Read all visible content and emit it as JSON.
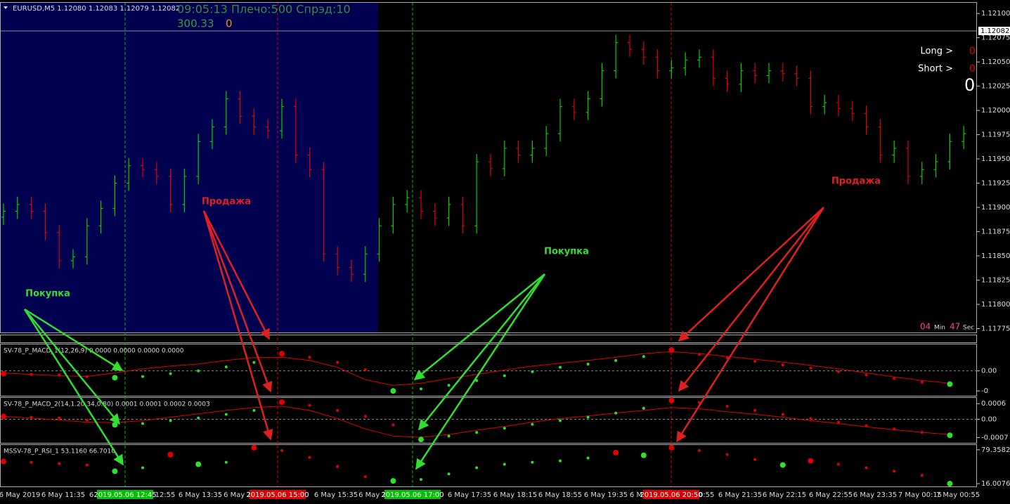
{
  "header": {
    "symbol": "EURUSD,M5  1.12080 1.12083 1.12079 1.12082",
    "status": "09:05:13 Плечо:500 Спрэд:10",
    "balance": "300.33",
    "balance_count": "0"
  },
  "panel_right": {
    "long": "Long >",
    "long_value": "0",
    "short": "Short >",
    "short_value": "0",
    "total": "0"
  },
  "timer": {
    "min": "04",
    "min_label": "Min",
    "sec": "47",
    "sec_label": "Sec"
  },
  "annotations": [
    {
      "text": "Продажа",
      "color": "#e02020"
    },
    {
      "text": "Продажа",
      "color": "#e02020"
    },
    {
      "text": "Покупка",
      "color": "#30e030"
    },
    {
      "text": "Покупка",
      "color": "#30e030"
    }
  ],
  "chart_data": [
    {
      "type": "ohlc",
      "up_color": "#00d000",
      "down_color": "#e00000",
      "session_color": "#000050",
      "price_line": 1.12082,
      "ylim": [
        1.11771,
        1.12111
      ],
      "yticks": [
        {
          "value": 1.121,
          "label": "1.12100"
        },
        {
          "value": 1.12075,
          "label": "1.12075"
        },
        {
          "value": 1.1205,
          "label": "1.12050"
        },
        {
          "value": 1.12025,
          "label": "1.12025"
        },
        {
          "value": 1.12,
          "label": "1.12000"
        },
        {
          "value": 1.11975,
          "label": "1.11975"
        },
        {
          "value": 1.1195,
          "label": "1.11950"
        },
        {
          "value": 1.11925,
          "label": "1.11925"
        },
        {
          "value": 1.119,
          "label": "1.11900"
        },
        {
          "value": 1.11875,
          "label": "1.11875"
        },
        {
          "value": 1.1185,
          "label": "1.11850"
        },
        {
          "value": 1.11825,
          "label": "1.11825"
        },
        {
          "value": 1.118,
          "label": "1.11800"
        },
        {
          "value": 1.11775,
          "label": "1.11775"
        }
      ],
      "ohlc": [
        [
          1.1189,
          1.11904,
          1.11882,
          1.11896
        ],
        [
          1.11896,
          1.11911,
          1.11888,
          1.11903
        ],
        [
          1.11903,
          1.11911,
          1.11888,
          1.11896
        ],
        [
          1.11896,
          1.11904,
          1.11866,
          1.11874
        ],
        [
          1.11874,
          1.11882,
          1.11837,
          1.11845
        ],
        [
          1.11845,
          1.11857,
          1.11837,
          1.11849
        ],
        [
          1.11849,
          1.11889,
          1.11841,
          1.11881
        ],
        [
          1.11881,
          1.11907,
          1.11873,
          1.11899
        ],
        [
          1.11899,
          1.11933,
          1.11891,
          1.11925
        ],
        [
          1.11925,
          1.11951,
          1.11917,
          1.11943
        ],
        [
          1.11943,
          1.11951,
          1.11931,
          1.11939
        ],
        [
          1.11939,
          1.11947,
          1.11924,
          1.11932
        ],
        [
          1.11932,
          1.1194,
          1.11895,
          1.11903
        ],
        [
          1.11903,
          1.1194,
          1.11895,
          1.11932
        ],
        [
          1.11932,
          1.11976,
          1.11924,
          1.11968
        ],
        [
          1.11968,
          1.11991,
          1.1196,
          1.11983
        ],
        [
          1.11983,
          1.1202,
          1.11975,
          1.12012
        ],
        [
          1.12012,
          1.1202,
          1.11986,
          1.11994
        ],
        [
          1.11994,
          1.12002,
          1.11975,
          1.11983
        ],
        [
          1.11983,
          1.11991,
          1.11971,
          1.11979
        ],
        [
          1.11979,
          1.12012,
          1.11971,
          1.12004
        ],
        [
          1.12004,
          1.12012,
          1.11946,
          1.11954
        ],
        [
          1.11954,
          1.11962,
          1.11931,
          1.11939
        ],
        [
          1.11939,
          1.11947,
          1.11844,
          1.11852
        ],
        [
          1.11852,
          1.1186,
          1.1183,
          1.11838
        ],
        [
          1.11838,
          1.11846,
          1.11823,
          1.11831
        ],
        [
          1.11831,
          1.1186,
          1.11823,
          1.11852
        ],
        [
          1.11852,
          1.11889,
          1.11844,
          1.11881
        ],
        [
          1.11881,
          1.11911,
          1.11873,
          1.11903
        ],
        [
          1.11903,
          1.11918,
          1.11895,
          1.1191
        ],
        [
          1.1191,
          1.11918,
          1.11888,
          1.11896
        ],
        [
          1.11896,
          1.11904,
          1.11881,
          1.11889
        ],
        [
          1.11889,
          1.11911,
          1.11881,
          1.11903
        ],
        [
          1.11903,
          1.11911,
          1.11873,
          1.11881
        ],
        [
          1.11881,
          1.11955,
          1.11873,
          1.11947
        ],
        [
          1.11947,
          1.11955,
          1.11932,
          1.1194
        ],
        [
          1.1194,
          1.11969,
          1.11932,
          1.11961
        ],
        [
          1.11961,
          1.11969,
          1.11946,
          1.11954
        ],
        [
          1.11954,
          1.11969,
          1.11946,
          1.11961
        ],
        [
          1.11961,
          1.11984,
          1.11953,
          1.11976
        ],
        [
          1.11976,
          1.12012,
          1.11968,
          1.12004
        ],
        [
          1.12004,
          1.12012,
          1.1199,
          1.11998
        ],
        [
          1.11998,
          1.1202,
          1.1199,
          1.12012
        ],
        [
          1.12012,
          1.12049,
          1.12004,
          1.12041
        ],
        [
          1.12041,
          1.12078,
          1.12033,
          1.1207
        ],
        [
          1.1207,
          1.12078,
          1.12055,
          1.12063
        ],
        [
          1.12063,
          1.12071,
          1.12047,
          1.12055
        ],
        [
          1.12055,
          1.12063,
          1.12033,
          1.12041
        ],
        [
          1.12041,
          1.12052,
          1.12033,
          1.12044
        ],
        [
          1.12044,
          1.1206,
          1.12036,
          1.12052
        ],
        [
          1.12052,
          1.12063,
          1.12044,
          1.12055
        ],
        [
          1.12055,
          1.12063,
          1.12025,
          1.12033
        ],
        [
          1.12033,
          1.12041,
          1.12019,
          1.12027
        ],
        [
          1.12027,
          1.12049,
          1.12019,
          1.12041
        ],
        [
          1.12041,
          1.12049,
          1.12028,
          1.12036
        ],
        [
          1.12036,
          1.12049,
          1.12028,
          1.12041
        ],
        [
          1.12041,
          1.12049,
          1.1203,
          1.12038
        ],
        [
          1.12038,
          1.12046,
          1.12025,
          1.12033
        ],
        [
          1.12033,
          1.12041,
          1.11996,
          1.12004
        ],
        [
          1.12004,
          1.12016,
          1.11996,
          1.12008
        ],
        [
          1.12008,
          1.12016,
          1.11994,
          1.12002
        ],
        [
          1.12002,
          1.1201,
          1.11989,
          1.11997
        ],
        [
          1.11997,
          1.12005,
          1.11975,
          1.11983
        ],
        [
          1.11983,
          1.11991,
          1.11946,
          1.11954
        ],
        [
          1.11954,
          1.11969,
          1.11946,
          1.11961
        ],
        [
          1.11961,
          1.11969,
          1.11924,
          1.11932
        ],
        [
          1.11932,
          1.11947,
          1.11924,
          1.11939
        ],
        [
          1.11939,
          1.11955,
          1.11931,
          1.11947
        ],
        [
          1.11947,
          1.11976,
          1.11939,
          1.11968
        ],
        [
          1.11968,
          1.11984,
          1.1196,
          1.11976
        ]
      ]
    },
    {
      "type": "indicator",
      "title": "SV-78_P_MACD_1(12,26,9) 0.0000 0.0000 0.0000 0.0000",
      "zero_line": true,
      "ylim": [
        -0.00062,
        0.00066
      ],
      "yticks": [
        {
          "value": 0,
          "label": "0.00"
        },
        {
          "value": -0.0005,
          "label": "-0"
        }
      ],
      "series": [
        {
          "color": "#e00000",
          "style": "line",
          "values": [
            -5e-05,
            -9e-05,
            -0.00012,
            -0.00014,
            -5e-05,
            5e-05,
            0.00012,
            0.00017,
            0.00026,
            0.00033,
            0.00034,
            0.00026,
            9e-05,
            -0.00022,
            -0.00036,
            -0.00031,
            -0.00019,
            -9e-05,
            2e-05,
            0.00012,
            0.00019,
            0.00026,
            0.00034,
            0.00043,
            0.00048,
            0.00043,
            0.00036,
            0.00029,
            0.00022,
            0.00014,
            5e-05,
            -5e-05,
            -0.00015,
            -0.00024,
            -0.00031
          ]
        },
        {
          "color": "#30e030",
          "style": "dots",
          "values": [
            null,
            null,
            null,
            null,
            -0.00017,
            -0.00014,
            -7e-05,
            0,
            0.0001,
            0.00021,
            null,
            null,
            null,
            null,
            -0.0005,
            -0.00045,
            -0.00036,
            -0.00024,
            -0.00012,
            -2e-05,
            9e-05,
            0.00017,
            0.00026,
            0.00036,
            null,
            null,
            null,
            null,
            null,
            null,
            null,
            null,
            null,
            null,
            -0.00033
          ]
        },
        {
          "color": "#e00000",
          "style": "dots",
          "values": [
            -7e-05,
            -9e-05,
            -0.0001,
            -0.00014,
            null,
            null,
            null,
            null,
            null,
            null,
            0.00043,
            0.00034,
            0.00021,
            3e-05,
            null,
            null,
            null,
            null,
            null,
            null,
            null,
            null,
            null,
            null,
            0.00052,
            0.00041,
            0.00033,
            0.00024,
            0.00015,
            7e-05,
            -2e-05,
            -0.0001,
            -0.00019,
            -0.00028,
            null
          ]
        }
      ]
    },
    {
      "type": "indicator",
      "title": "SV-78_P_MACD_2(14,1.20,34,0.80) 0.0001 0.0001 0.0002 0.0003",
      "zero_line": true,
      "ylim": [
        -0.0009,
        0.00082
      ],
      "yticks": [
        0.0006,
        {
          "value": 0,
          "label": "0.00"
        },
        -0.0007
      ],
      "series": [
        {
          "color": "#e00000",
          "style": "line",
          "values": [
            0.00011,
            5e-05,
            -3e-05,
            -0.00011,
            -0.00013,
            -5e-05,
            8e-05,
            0.00021,
            0.00034,
            0.00045,
            0.0005,
            0.00034,
            3e-05,
            -0.00037,
            -0.00064,
            -0.00069,
            -0.00058,
            -0.00042,
            -0.00027,
            -0.00011,
            3e-05,
            0.00013,
            0.00024,
            0.00034,
            0.00045,
            0.0004,
            0.00029,
            0.00019,
            8e-05,
            -5e-05,
            -0.00016,
            -0.00029,
            -0.0004,
            -0.0005,
            -0.00058
          ]
        },
        {
          "color": "#30e030",
          "style": "dots",
          "values": [
            null,
            null,
            null,
            null,
            -0.00021,
            -0.00016,
            -5e-05,
            5e-05,
            0.00019,
            0.00034,
            null,
            null,
            null,
            null,
            null,
            -0.00077,
            -0.00064,
            -0.0005,
            -0.00034,
            -0.00019,
            -5e-05,
            8e-05,
            0.00024,
            0.00042,
            null,
            null,
            null,
            null,
            null,
            null,
            null,
            null,
            null,
            null,
            -0.00061
          ]
        },
        {
          "color": "#e00000",
          "style": "dots",
          "values": [
            0.00011,
            8e-05,
            5e-05,
            -3e-05,
            null,
            null,
            null,
            null,
            null,
            null,
            0.00066,
            0.00053,
            0.00034,
            0.00011,
            -0.00021,
            null,
            null,
            null,
            null,
            null,
            null,
            null,
            null,
            null,
            0.00072,
            0.00064,
            0.0005,
            0.00034,
            0.00019,
            3e-05,
            -0.00011,
            -0.00024,
            -0.00037,
            -0.0005,
            null
          ]
        }
      ]
    },
    {
      "type": "indicator",
      "title": "MSSV-78_P_RSI_1 53.1160 66.7010",
      "zero_line": false,
      "ylim": [
        10.8,
        88.4
      ],
      "yticks": [
        79.3582,
        16.0076
      ],
      "series": [
        {
          "color": "#30e030",
          "style": "dots",
          "values": [
            null,
            null,
            null,
            null,
            39.28,
            45.74,
            null,
            52.21,
            56.09,
            null,
            null,
            null,
            null,
            null,
            21.17,
            23.76,
            34.1,
            45.74,
            52.21,
            56.09,
            58.67,
            63.84,
            null,
            69.01,
            null,
            null,
            null,
            null,
            50.91,
            null,
            null,
            null,
            null,
            null,
            16.0
          ]
        },
        {
          "color": "#e00000",
          "style": "dots",
          "values": [
            57.38,
            56.09,
            53.5,
            50.91,
            null,
            null,
            70.31,
            null,
            null,
            83.24,
            78.07,
            65.13,
            48.33,
            28.93,
            null,
            null,
            null,
            null,
            null,
            null,
            null,
            null,
            74.19,
            null,
            83.24,
            78.07,
            70.31,
            61.26,
            null,
            58.67,
            52.21,
            45.74,
            39.28,
            31.52,
            null
          ]
        }
      ]
    }
  ],
  "time_labels": [
    {
      "label": "6 May 2019"
    },
    {
      "label": "6 May 11:35"
    },
    {
      "label": "6"
    },
    {
      "label": "2019.05.06 12:45",
      "box": "#00c000"
    },
    {
      "label": "12:55"
    },
    {
      "label": "6 May 13:35"
    },
    {
      "label": "6 May 1"
    },
    {
      "label": "2019.05.06 15:00",
      "box": "#e00000"
    },
    {
      "label": "6 May 15:35"
    },
    {
      "label": "6 May 1"
    },
    {
      "label": "2019.05.06 17:00",
      "box": "#00c000"
    },
    {
      "label": "6 May 17:35"
    },
    {
      "label": "6 May 18:15"
    },
    {
      "label": "6 May 18:55"
    },
    {
      "label": "6 May 19:35"
    },
    {
      "label": "6 M"
    },
    {
      "label": "2019.05.06 20:50",
      "box": "#e00000"
    },
    {
      "label": "20:55"
    },
    {
      "label": "6 May 21:35"
    },
    {
      "label": "6 May 22:15"
    },
    {
      "label": "6 May 22:55"
    },
    {
      "label": "6 May 23:35"
    },
    {
      "label": "7 May 00:15"
    },
    {
      "label": "7 May 00:55"
    }
  ]
}
